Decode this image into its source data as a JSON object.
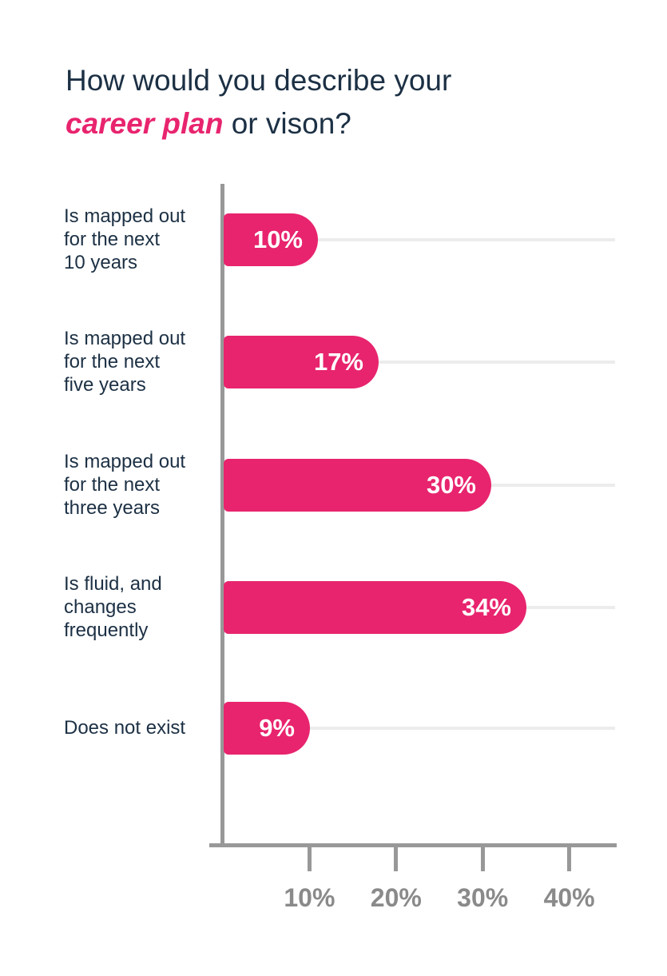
{
  "title": {
    "line1": "How would you describe your",
    "highlight": "career plan",
    "suffix": " or vison?"
  },
  "colors": {
    "bar_pink": "#E8246E",
    "text_dark": "#1C3044",
    "axis_gray": "#989898",
    "grid_gray": "#ECECEC",
    "tick_label_gray": "#8A8A8A",
    "value_label_white": "#FFFFFF",
    "background": "#FFFFFF"
  },
  "chart_data": {
    "type": "bar",
    "orientation": "horizontal",
    "title": "How would you describe your career plan or vison?",
    "categories": [
      "Is mapped out for the next 10 years",
      "Is mapped out for the next five years",
      "Is mapped out for the next three years",
      "Is fluid, and changes frequently",
      "Does not exist"
    ],
    "category_lines": [
      [
        "Is mapped out",
        "for the next",
        "10 years"
      ],
      [
        "Is mapped out",
        "for the next",
        "five years"
      ],
      [
        "Is mapped out",
        "for the next",
        "three years"
      ],
      [
        "Is fluid, and",
        "changes",
        "frequently"
      ],
      [
        "Does not exist"
      ]
    ],
    "values": [
      10,
      17,
      30,
      34,
      9
    ],
    "value_labels": [
      "10%",
      "17%",
      "30%",
      "34%",
      "9%"
    ],
    "x_ticks": [
      {
        "value": 10,
        "label": "10%"
      },
      {
        "value": 20,
        "label": "20%"
      },
      {
        "value": 30,
        "label": "30%"
      },
      {
        "value": 40,
        "label": "40%"
      }
    ],
    "xlim": [
      0,
      45
    ],
    "xlabel": "",
    "ylabel": "",
    "grid": "per-row horizontal light gridlines",
    "legend": "none"
  }
}
